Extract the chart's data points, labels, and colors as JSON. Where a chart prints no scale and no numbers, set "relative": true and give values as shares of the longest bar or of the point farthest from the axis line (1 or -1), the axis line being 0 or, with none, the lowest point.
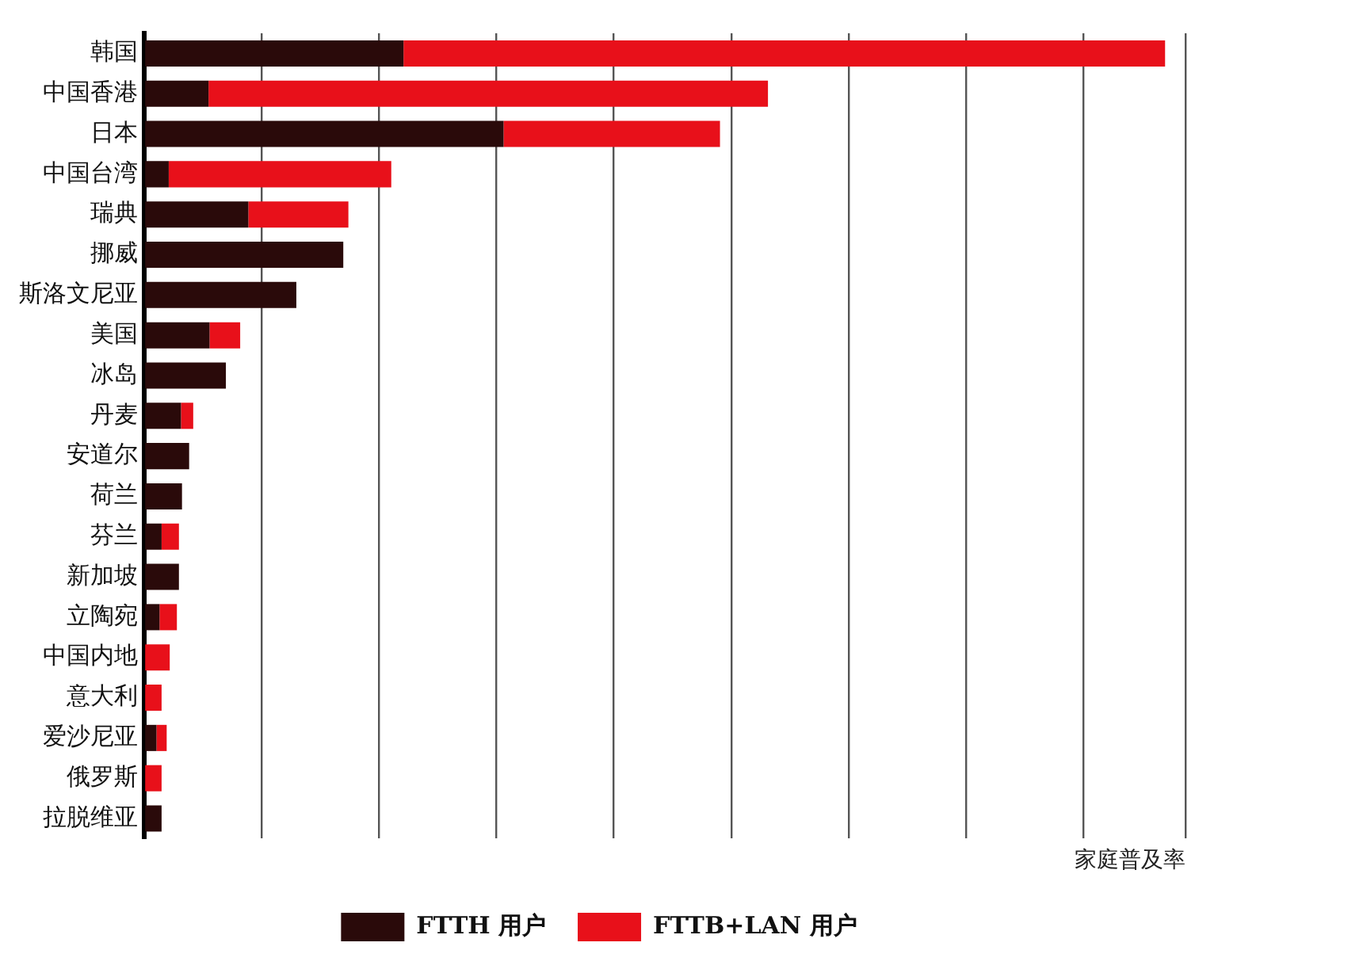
{
  "chart_data": {
    "type": "bar",
    "orientation": "horizontal",
    "stacked": true,
    "relative": true,
    "grid": "x",
    "legend": "bottom",
    "xlabel": "家庭普及率",
    "categories": [
      "韩国",
      "中国香港",
      "日本",
      "中国台湾",
      "瑞典",
      "挪威",
      "斯洛文尼亚",
      "美国",
      "冰岛",
      "丹麦",
      "安道尔",
      "荷兰",
      "芬兰",
      "新加坡",
      "立陶宛",
      "中国内地",
      "意大利",
      "爱沙尼亚",
      "俄罗斯",
      "拉脱维亚"
    ],
    "series": [
      {
        "name": "FTTH 用户",
        "color": "#2a0a0a",
        "values": [
          0.254,
          0.063,
          0.352,
          0.024,
          0.102,
          0.195,
          0.149,
          0.064,
          0.08,
          0.036,
          0.044,
          0.037,
          0.017,
          0.034,
          0.015,
          0,
          0,
          0.012,
          0,
          0.017
        ]
      },
      {
        "name": "FTTB+LAN 用户",
        "color": "#e8101a",
        "values": [
          0.746,
          0.548,
          0.212,
          0.218,
          0.098,
          0,
          0,
          0.03,
          0,
          0.012,
          0,
          0,
          0.017,
          0,
          0.017,
          0.025,
          0.017,
          0.01,
          0.017,
          0
        ]
      }
    ]
  }
}
